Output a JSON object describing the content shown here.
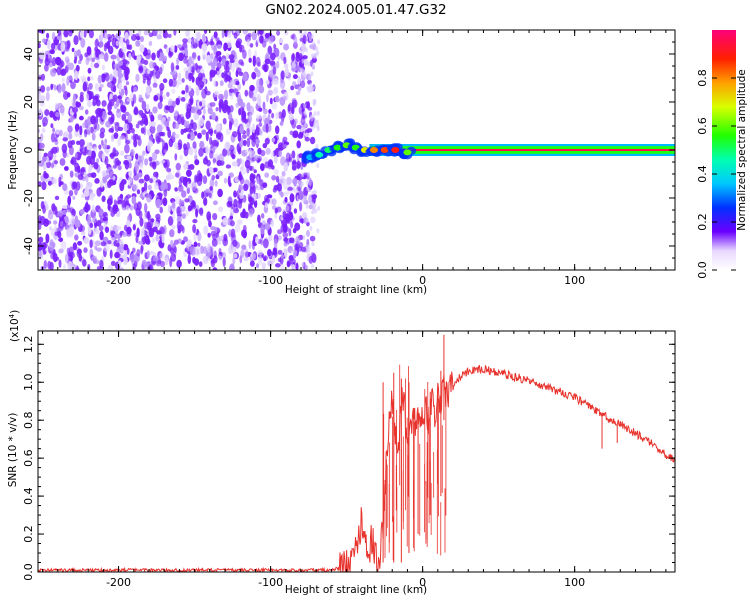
{
  "title": "GN02.2024.005.01.47.G32",
  "chart_data": [
    {
      "type": "heatmap",
      "name": "spectrogram",
      "xlabel": "Height of straight line (km)",
      "ylabel": "Frequency (Hz)",
      "xlim": [
        -253,
        166
      ],
      "ylim": [
        -50,
        50
      ],
      "xticks": [
        -200,
        -100,
        0,
        100
      ],
      "yticks": [
        -40,
        -20,
        0,
        20,
        40
      ],
      "colorbar": {
        "label": "Normalized spectral amplitude",
        "range": [
          0,
          1
        ],
        "ticks": [
          "0.0",
          "0.2",
          "0.4",
          "0.6",
          "0.8"
        ]
      },
      "regions": [
        {
          "description_free": true,
          "x_range": [
            -253,
            -75
          ],
          "kind": "noise",
          "amplitude": 0.15
        },
        {
          "x_range": [
            -75,
            -5
          ],
          "kind": "wandering_signal",
          "freq_range": [
            -5,
            5
          ],
          "amplitude": 0.5
        },
        {
          "x_range": [
            -35,
            166
          ],
          "kind": "carrier",
          "freq": 0,
          "amplitude": 0.95
        }
      ],
      "signal_track": [
        {
          "x": -74,
          "f": -3,
          "a": 0.35
        },
        {
          "x": -68,
          "f": -2,
          "a": 0.45
        },
        {
          "x": -62,
          "f": 0,
          "a": 0.5
        },
        {
          "x": -56,
          "f": 1,
          "a": 0.55
        },
        {
          "x": -50,
          "f": 2,
          "a": 0.6
        },
        {
          "x": -44,
          "f": 1,
          "a": 0.55
        },
        {
          "x": -38,
          "f": 0,
          "a": 0.7
        },
        {
          "x": -32,
          "f": 0,
          "a": 0.8
        },
        {
          "x": -25,
          "f": 0,
          "a": 0.85
        },
        {
          "x": -18,
          "f": 0,
          "a": 0.9
        },
        {
          "x": -10,
          "f": -1,
          "a": 0.6
        }
      ]
    },
    {
      "type": "line",
      "name": "snr",
      "xlabel": "Height of straight line (km)",
      "ylabel": "SNR (10 * v/v)",
      "y_multiplier": "(x10",
      "y_exponent": "4",
      "xlim": [
        -253,
        166
      ],
      "ylim": [
        0,
        1.27
      ],
      "xticks": [
        -200,
        -100,
        0,
        100
      ],
      "yticks": [
        "0.0",
        "0.2",
        "0.4",
        "0.6",
        "0.8",
        "1.0",
        "1.2"
      ],
      "color": "#e8322c",
      "points": [
        [
          -253,
          0.01
        ],
        [
          -200,
          0.01
        ],
        [
          -150,
          0.01
        ],
        [
          -100,
          0.01
        ],
        [
          -60,
          0.01
        ],
        [
          -50,
          0.03
        ],
        [
          -45,
          0.08
        ],
        [
          -42,
          0.18
        ],
        [
          -40,
          0.3
        ],
        [
          -38,
          0.2
        ],
        [
          -36,
          0.1
        ],
        [
          -33,
          0.18
        ],
        [
          -31,
          0.08
        ],
        [
          -29,
          0.03
        ],
        [
          -26,
          0.25
        ],
        [
          -24,
          0.55
        ],
        [
          -22,
          0.8
        ],
        [
          -20,
          0.95
        ],
        [
          -18,
          0.7
        ],
        [
          -16,
          0.6
        ],
        [
          -14,
          0.9
        ],
        [
          -12,
          0.85
        ],
        [
          -10,
          0.7
        ],
        [
          -8,
          0.78
        ],
        [
          -6,
          0.8
        ],
        [
          -4,
          0.78
        ],
        [
          -2,
          0.85
        ],
        [
          0,
          0.8
        ],
        [
          2,
          0.88
        ],
        [
          4,
          0.78
        ],
        [
          6,
          0.92
        ],
        [
          8,
          0.82
        ],
        [
          10,
          0.95
        ],
        [
          12,
          0.9
        ],
        [
          14,
          0.98
        ],
        [
          16,
          0.93
        ],
        [
          20,
          0.98
        ],
        [
          25,
          1.03
        ],
        [
          30,
          1.06
        ],
        [
          35,
          1.07
        ],
        [
          40,
          1.07
        ],
        [
          50,
          1.05
        ],
        [
          60,
          1.03
        ],
        [
          70,
          1.01
        ],
        [
          80,
          0.98
        ],
        [
          90,
          0.95
        ],
        [
          100,
          0.92
        ],
        [
          110,
          0.87
        ],
        [
          120,
          0.82
        ],
        [
          130,
          0.78
        ],
        [
          140,
          0.73
        ],
        [
          150,
          0.68
        ],
        [
          160,
          0.62
        ],
        [
          166,
          0.59
        ]
      ],
      "spikes": [
        {
          "x": -26,
          "y": 0.05,
          "y2": 1.0
        },
        {
          "x": -19,
          "y": 0.05,
          "y2": 1.05
        },
        {
          "x": -14,
          "y": 0.05,
          "y2": 1.02
        },
        {
          "x": -9,
          "y": 0.1,
          "y2": 1.0
        },
        {
          "x": -3,
          "y": 0.2,
          "y2": 0.85
        },
        {
          "x": 5,
          "y": 0.3,
          "y2": 0.95
        },
        {
          "x": 12,
          "y": 0.4,
          "y2": 1.06
        },
        {
          "x": 14,
          "y": 0.8,
          "y2": 1.25
        },
        {
          "x": 118,
          "y": 0.65,
          "y2": 0.84
        },
        {
          "x": 128,
          "y": 0.68,
          "y2": 0.78
        }
      ]
    }
  ]
}
